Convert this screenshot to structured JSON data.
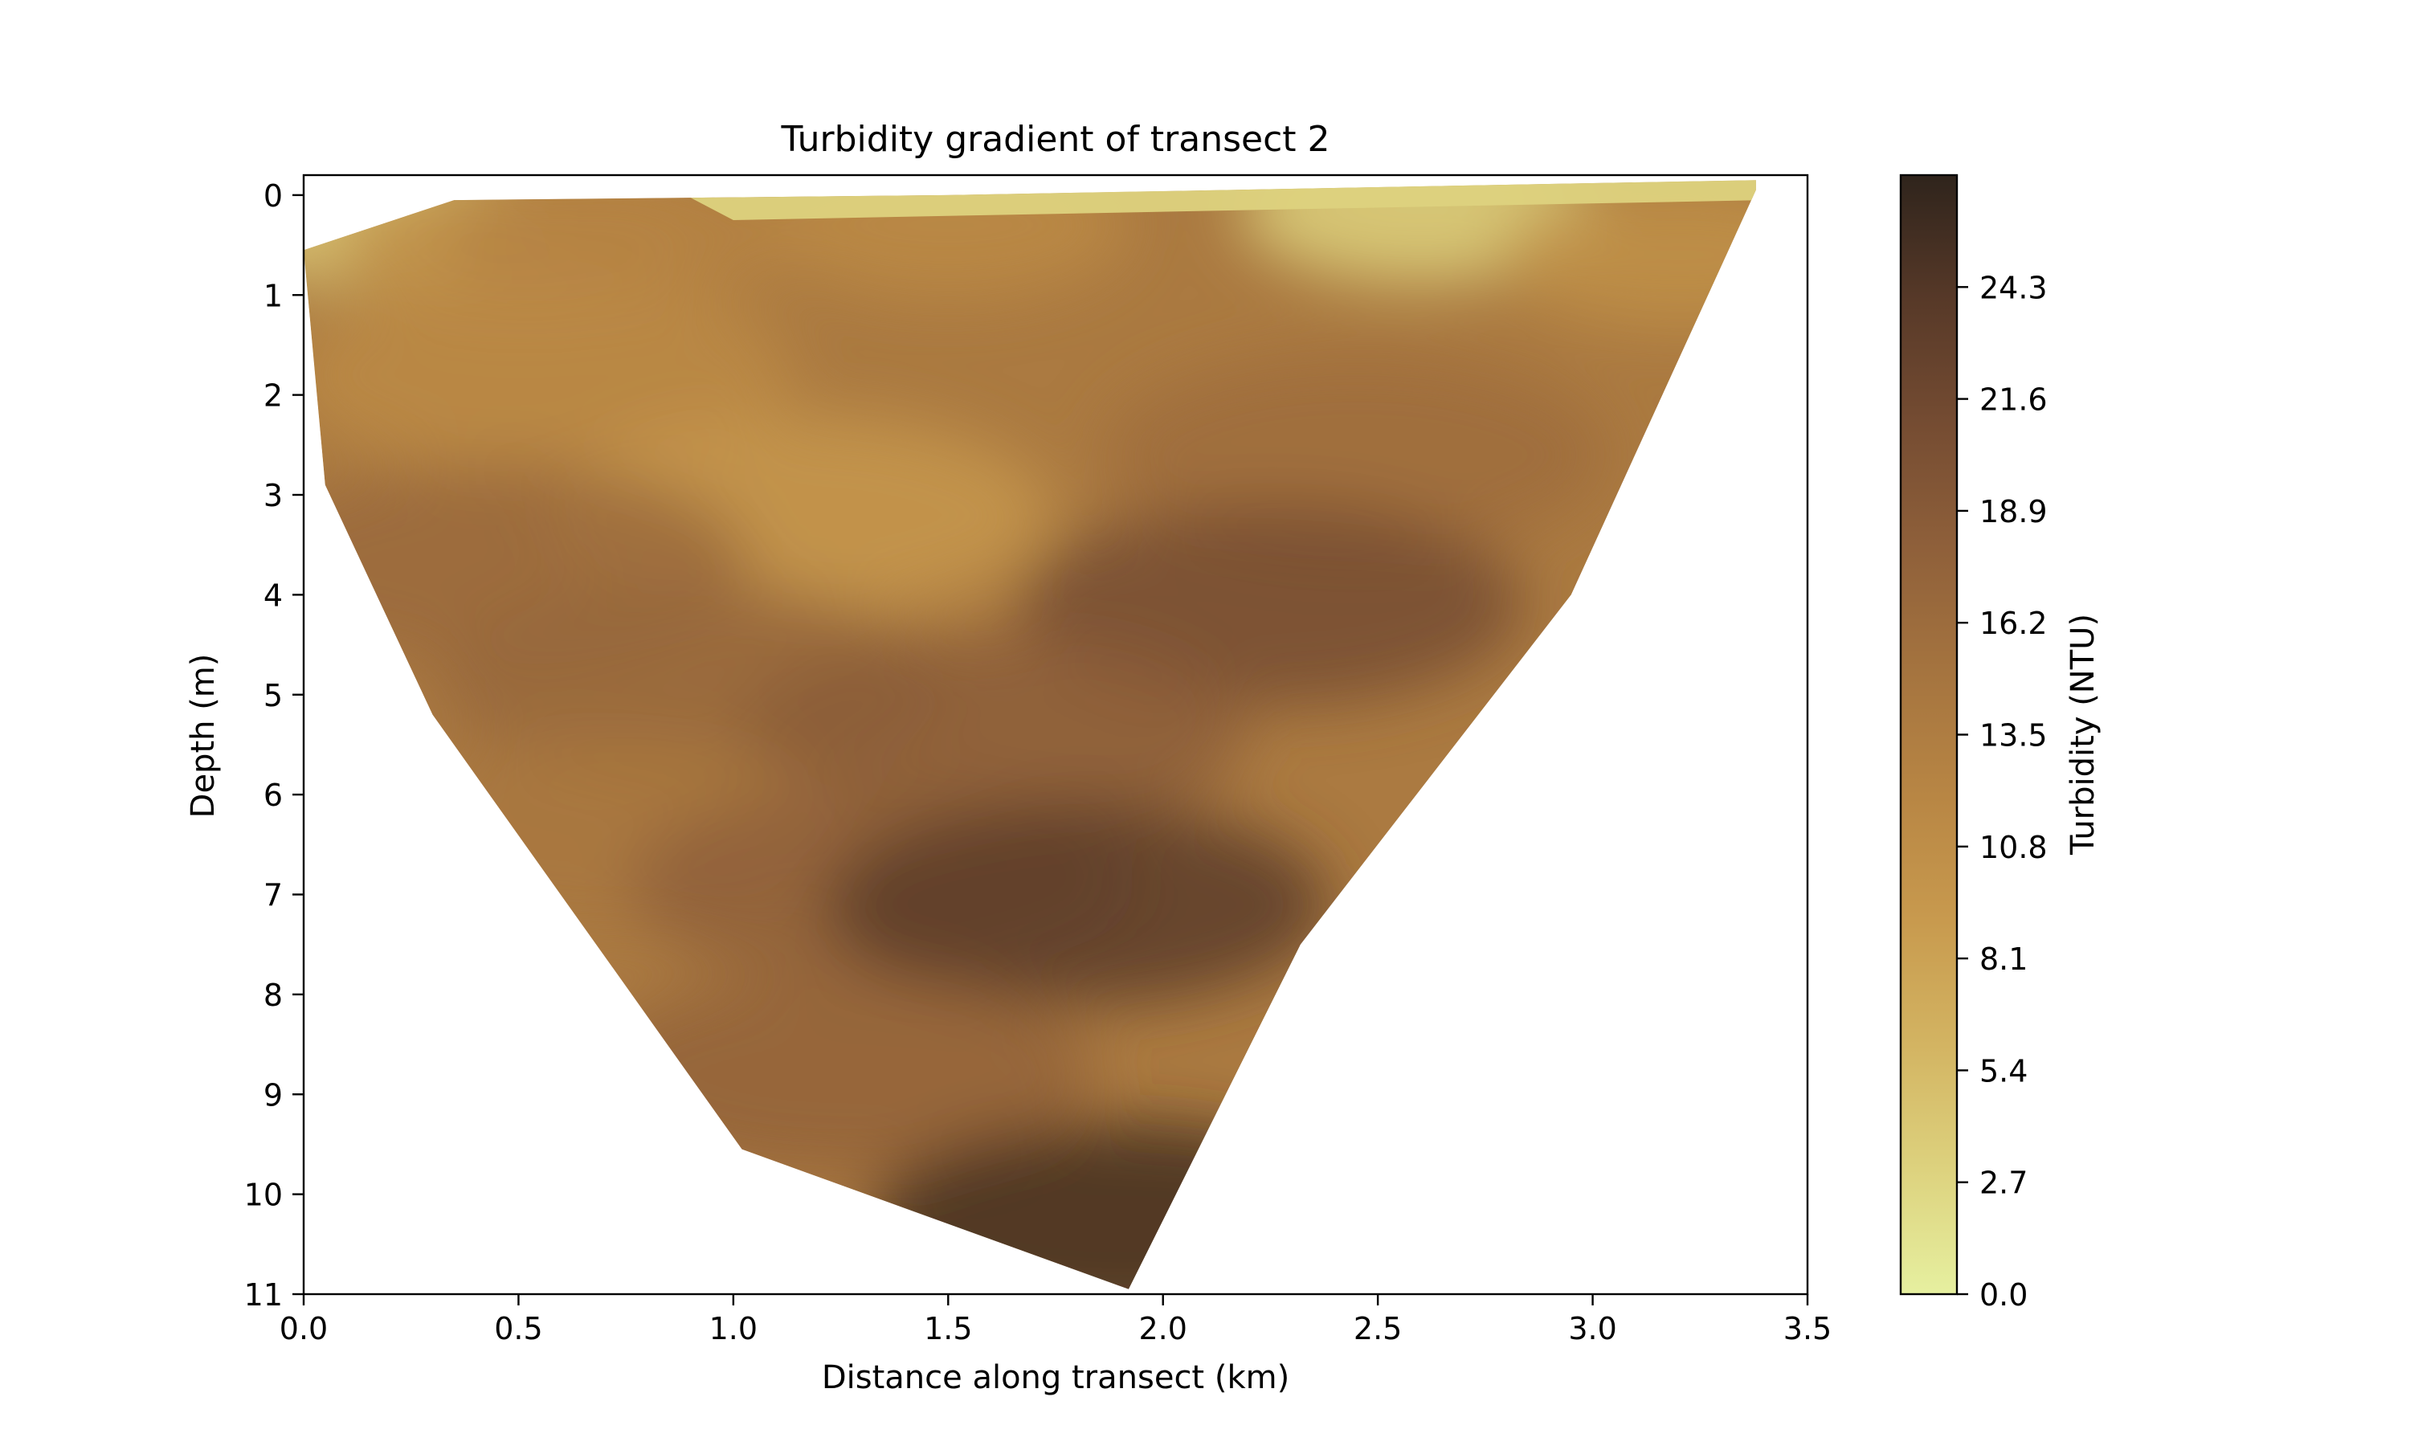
{
  "chart_data": {
    "type": "heatmap",
    "title": "Turbidity gradient of transect 2",
    "xlabel": "Distance along transect (km)",
    "ylabel": "Depth (m)",
    "xlim": [
      0.0,
      3.5
    ],
    "ylim": [
      11,
      -0.2
    ],
    "x_ticks": [
      "0.0",
      "0.5",
      "1.0",
      "1.5",
      "2.0",
      "2.5",
      "3.0",
      "3.5"
    ],
    "y_ticks": [
      "0",
      "1",
      "2",
      "3",
      "4",
      "5",
      "6",
      "7",
      "8",
      "9",
      "10",
      "11"
    ],
    "colorbar": {
      "label": "Turbidity (NTU)",
      "range": [
        0.0,
        27.0
      ],
      "ticks": [
        "0.0",
        "2.7",
        "5.4",
        "8.1",
        "10.8",
        "13.5",
        "16.2",
        "18.9",
        "21.6",
        "24.3"
      ],
      "colors": [
        "#e6f0a0",
        "#ddd27e",
        "#d3b462",
        "#c89a4e",
        "#b88644",
        "#a5743f",
        "#8f603a",
        "#754c32",
        "#573928",
        "#2f241c"
      ]
    },
    "section_outline_depth_vs_distance": {
      "x": [
        0.0,
        0.05,
        0.3,
        1.02,
        1.92,
        2.32,
        2.95,
        3.38
      ],
      "depth": [
        0.55,
        2.9,
        5.2,
        9.55,
        10.95,
        7.5,
        4.0,
        -0.05
      ]
    },
    "surface_depth_vs_distance": {
      "x": [
        0.0,
        0.35,
        1.5,
        3.38
      ],
      "depth": [
        0.55,
        0.05,
        0.0,
        -0.15
      ]
    },
    "turbidity_features": [
      {
        "x": 0.15,
        "depth": 0.2,
        "value": 4.0
      },
      {
        "x": 0.5,
        "depth": 0.5,
        "value": 11.0
      },
      {
        "x": 0.75,
        "depth": 0.4,
        "value": 12.5
      },
      {
        "x": 1.5,
        "depth": 0.3,
        "value": 11.5
      },
      {
        "x": 2.6,
        "depth": 0.15,
        "value": 3.0
      },
      {
        "x": 3.2,
        "depth": 0.6,
        "value": 10.5
      },
      {
        "x": 0.55,
        "depth": 1.8,
        "value": 11.5
      },
      {
        "x": 2.45,
        "depth": 2.6,
        "value": 16.0
      },
      {
        "x": 1.15,
        "depth": 3.2,
        "value": 9.5
      },
      {
        "x": 0.45,
        "depth": 3.7,
        "value": 16.5
      },
      {
        "x": 2.25,
        "depth": 4.1,
        "value": 21.0
      },
      {
        "x": 0.9,
        "depth": 4.9,
        "value": 17.0
      },
      {
        "x": 1.6,
        "depth": 5.4,
        "value": 18.5
      },
      {
        "x": 0.7,
        "depth": 6.4,
        "value": 14.5
      },
      {
        "x": 1.35,
        "depth": 6.9,
        "value": 18.0
      },
      {
        "x": 1.8,
        "depth": 7.1,
        "value": 23.5
      },
      {
        "x": 1.25,
        "depth": 8.8,
        "value": 17.5
      },
      {
        "x": 1.9,
        "depth": 10.3,
        "value": 25.5
      }
    ]
  }
}
